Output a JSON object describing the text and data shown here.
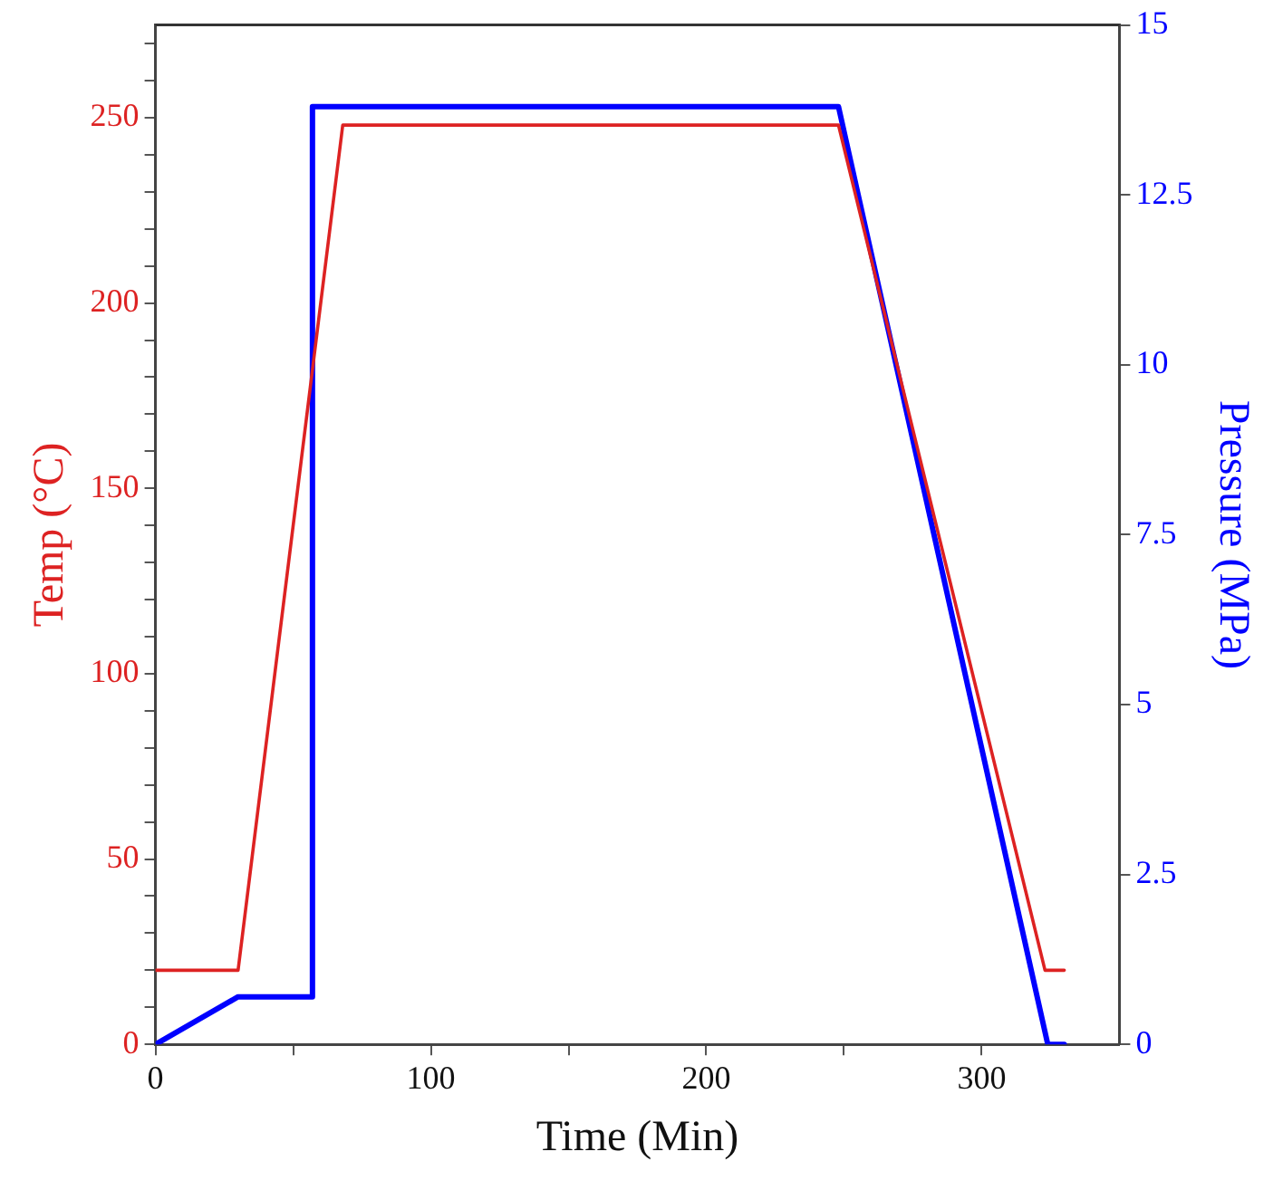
{
  "chart_data": {
    "type": "line",
    "xlabel": "Time (Min)",
    "ylabel": "Temp (°C)",
    "y2label": "Pressure (MPa)",
    "xlim": [
      0,
      350
    ],
    "xticks": [
      0,
      {
        "value": 50,
        "label": null
      },
      100,
      {
        "value": 150,
        "label": null
      },
      200,
      {
        "value": 250,
        "label": null
      },
      300
    ],
    "ylim": [
      0,
      275
    ],
    "yticks": [
      0,
      {
        "value": 10,
        "label": null
      },
      {
        "value": 20,
        "label": null
      },
      {
        "value": 30,
        "label": null
      },
      {
        "value": 40,
        "label": null
      },
      50,
      {
        "value": 60,
        "label": null
      },
      {
        "value": 70,
        "label": null
      },
      {
        "value": 80,
        "label": null
      },
      {
        "value": 90,
        "label": null
      },
      100,
      {
        "value": 110,
        "label": null
      },
      {
        "value": 120,
        "label": null
      },
      {
        "value": 130,
        "label": null
      },
      {
        "value": 140,
        "label": null
      },
      150,
      {
        "value": 160,
        "label": null
      },
      {
        "value": 170,
        "label": null
      },
      {
        "value": 180,
        "label": null
      },
      {
        "value": 190,
        "label": null
      },
      200,
      {
        "value": 210,
        "label": null
      },
      {
        "value": 220,
        "label": null
      },
      {
        "value": 230,
        "label": null
      },
      {
        "value": 240,
        "label": null
      },
      250,
      {
        "value": 260,
        "label": null
      },
      {
        "value": 270,
        "label": null
      }
    ],
    "y2lim": [
      0,
      15
    ],
    "y2ticks": [
      0,
      2.5,
      5,
      7.5,
      10,
      12.5,
      15
    ],
    "grid": false,
    "legend": false,
    "marker": "none",
    "line_style": "solid",
    "series": [
      {
        "color": "#dd2222",
        "x": [
          0,
          30,
          68,
          248,
          323,
          330
        ],
        "values": [
          20,
          20,
          248,
          248,
          20,
          20
        ]
      },
      {
        "color": "#0000ff",
        "axis": "y2",
        "x": [
          0,
          30,
          57,
          57,
          248,
          324,
          330
        ],
        "values": [
          0,
          0.7,
          0.7,
          13.8,
          13.8,
          0,
          0
        ]
      }
    ]
  }
}
